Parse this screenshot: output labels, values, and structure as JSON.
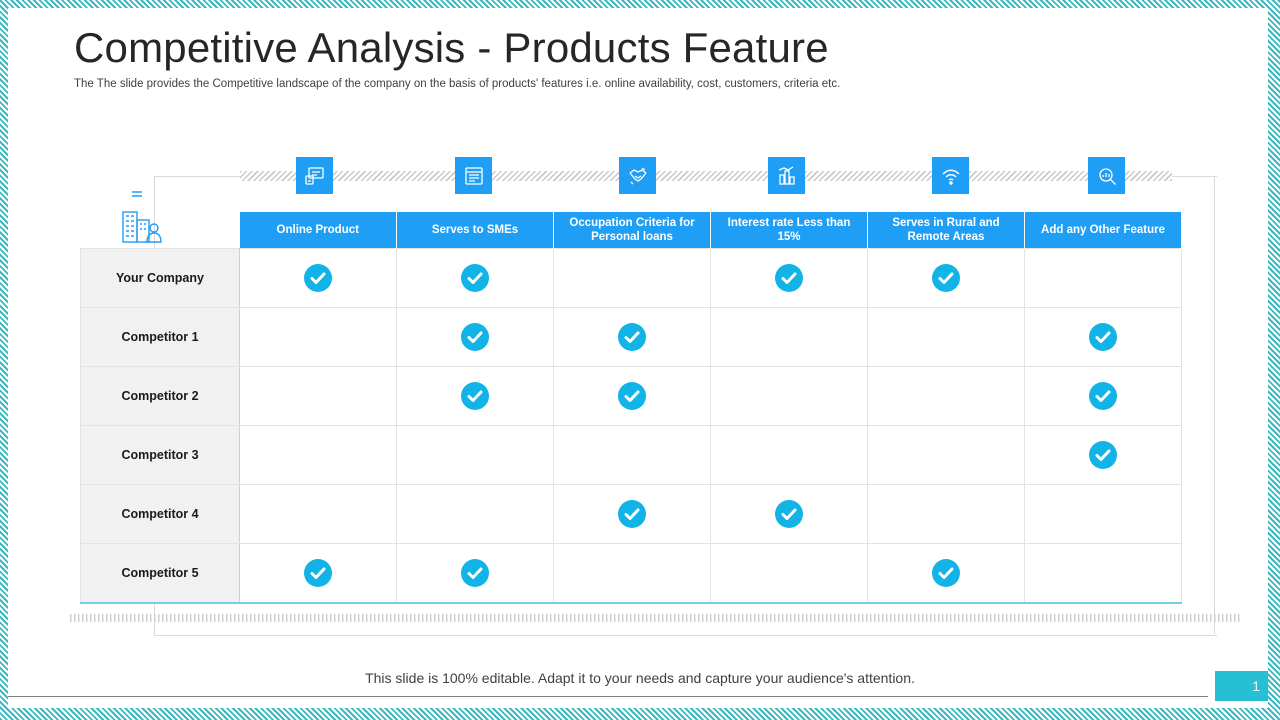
{
  "slide": {
    "title": "Competitive Analysis - Products Feature",
    "subtitle": "The The slide provides the Competitive landscape of the company  on the basis of products' features i.e. online availability, cost, customers, criteria etc."
  },
  "features": [
    {
      "label": "Online Product",
      "icon": "online-product-icon"
    },
    {
      "label": "Serves to SMEs",
      "icon": "browser-window-icon"
    },
    {
      "label": "Occupation Criteria for Personal loans",
      "icon": "handshake-icon"
    },
    {
      "label": "Interest rate Less than 15%",
      "icon": "finance-chart-icon"
    },
    {
      "label": "Serves in Rural and Remote Areas",
      "icon": "wifi-icon"
    },
    {
      "label": "Add any Other Feature",
      "icon": "analytics-search-icon"
    }
  ],
  "rows": [
    {
      "label": "Your Company",
      "checks": [
        true,
        true,
        false,
        true,
        true,
        false
      ]
    },
    {
      "label": "Competitor 1",
      "checks": [
        false,
        true,
        true,
        false,
        false,
        true
      ]
    },
    {
      "label": "Competitor 2",
      "checks": [
        false,
        true,
        true,
        false,
        false,
        true
      ]
    },
    {
      "label": "Competitor 3",
      "checks": [
        false,
        false,
        false,
        false,
        false,
        true
      ]
    },
    {
      "label": "Competitor 4",
      "checks": [
        false,
        false,
        true,
        true,
        false,
        false
      ]
    },
    {
      "label": "Competitor 5",
      "checks": [
        true,
        true,
        false,
        false,
        true,
        false
      ]
    }
  ],
  "footer": {
    "text": "This slide is 100% editable. Adapt it to your needs and capture your audience's attention.",
    "page_number": "1"
  },
  "colors": {
    "header_blue": "#1f9ef5",
    "check_cyan": "#12b3e6",
    "accent_teal": "#27bfd3"
  }
}
